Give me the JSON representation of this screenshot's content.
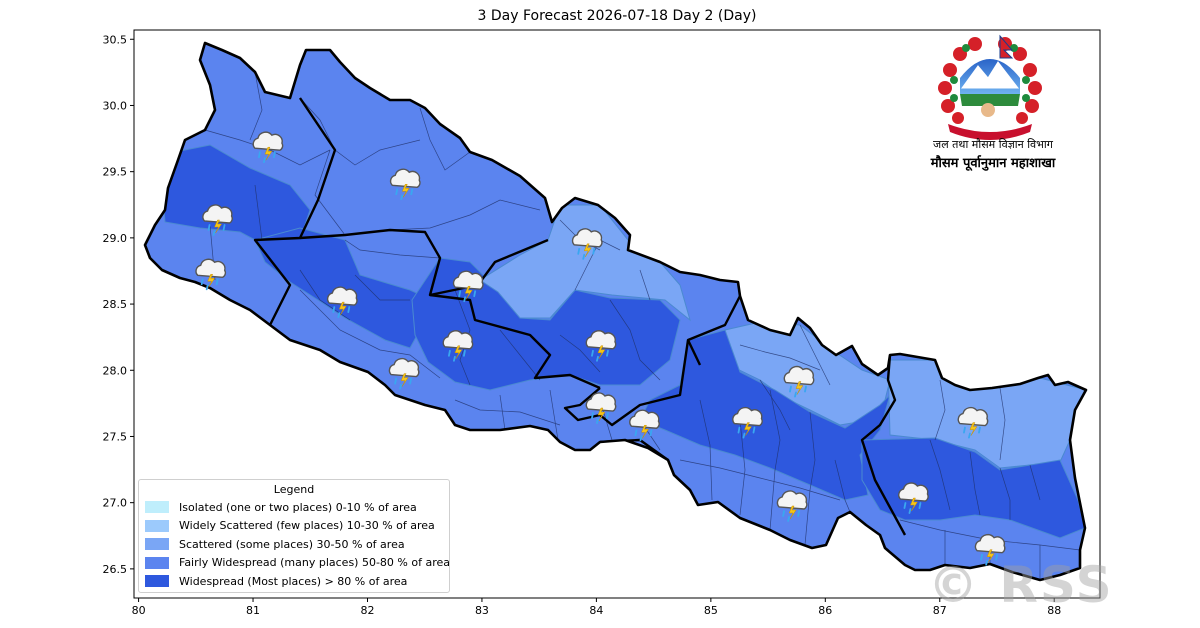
{
  "title": "3 Day Forecast 2026-07-18 Day 2 (Day)",
  "axes": {
    "x_ticks": [
      "80",
      "81",
      "82",
      "83",
      "84",
      "85",
      "86",
      "87",
      "88"
    ],
    "y_ticks": [
      "30.5",
      "30.0",
      "29.5",
      "29.0",
      "28.5",
      "28.0",
      "27.5",
      "27.0",
      "26.5"
    ],
    "xlim": [
      79.96,
      88.4
    ],
    "ylim": [
      26.28,
      30.57
    ]
  },
  "legend": {
    "title": "Legend",
    "items": [
      {
        "label": "Isolated (one or two places)  0-10 % of area",
        "color": "#bfeefc"
      },
      {
        "label": "Widely Scattered (few places)  10-30 % of area",
        "color": "#9ccafc"
      },
      {
        "label": "Scattered (some places)  30-50 % of area",
        "color": "#7aa6f5"
      },
      {
        "label": "Fairly Widespread (many places)  50-80 % of area",
        "color": "#5b84ef"
      },
      {
        "label": "Widespread (Most places) > 80 % of area",
        "color": "#2e58de"
      }
    ]
  },
  "organization": {
    "line1": "जल तथा मौसम विज्ञान विभाग",
    "line2": "मौसम पूर्वानुमान महाशाखा"
  },
  "watermark": "© RSS",
  "regions": [
    {
      "name": "far-west-hills",
      "level": "Fairly Widespread",
      "color": "#5b84ef"
    },
    {
      "name": "far-west-core",
      "level": "Widespread",
      "color": "#2e58de"
    },
    {
      "name": "far-west-plains",
      "level": "Fairly Widespread",
      "color": "#5b84ef"
    },
    {
      "name": "karnali-north",
      "level": "Fairly Widespread",
      "color": "#5b84ef"
    },
    {
      "name": "karnali-south",
      "level": "Widespread",
      "color": "#2e58de"
    },
    {
      "name": "lumbini-plains",
      "level": "Fairly Widespread",
      "color": "#5b84ef"
    },
    {
      "name": "gandaki-north",
      "level": "Scattered",
      "color": "#7aa6f5"
    },
    {
      "name": "gandaki-south",
      "level": "Widespread",
      "color": "#2e58de"
    },
    {
      "name": "bagmati-north",
      "level": "Scattered",
      "color": "#7aa6f5"
    },
    {
      "name": "bagmati-south",
      "level": "Widespread",
      "color": "#2e58de"
    },
    {
      "name": "madhesh",
      "level": "Fairly Widespread",
      "color": "#5b84ef"
    },
    {
      "name": "koshi-north",
      "level": "Scattered",
      "color": "#7aa6f5"
    },
    {
      "name": "koshi-south",
      "level": "Widespread",
      "color": "#2e58de"
    },
    {
      "name": "koshi-plains",
      "level": "Fairly Widespread",
      "color": "#5b84ef"
    }
  ],
  "icons": [
    {
      "name": "thunderstorm-rain-icon",
      "lon": 81.13,
      "lat": 29.7
    },
    {
      "name": "thunderstorm-rain-icon",
      "lon": 82.33,
      "lat": 29.42
    },
    {
      "name": "thunderstorm-rain-icon",
      "lon": 80.69,
      "lat": 29.15
    },
    {
      "name": "thunderstorm-rain-icon",
      "lon": 80.63,
      "lat": 28.74
    },
    {
      "name": "thunderstorm-rain-icon",
      "lon": 81.78,
      "lat": 28.53
    },
    {
      "name": "thunderstorm-rain-icon",
      "lon": 82.88,
      "lat": 28.65
    },
    {
      "name": "thunderstorm-rain-icon",
      "lon": 83.92,
      "lat": 28.97
    },
    {
      "name": "thunderstorm-rain-icon",
      "lon": 82.79,
      "lat": 28.2
    },
    {
      "name": "thunderstorm-rain-icon",
      "lon": 84.04,
      "lat": 28.2
    },
    {
      "name": "thunderstorm-rain-icon",
      "lon": 82.32,
      "lat": 27.99
    },
    {
      "name": "thunderstorm-rain-icon",
      "lon": 84.04,
      "lat": 27.73
    },
    {
      "name": "thunderstorm-rain-icon",
      "lon": 84.42,
      "lat": 27.6
    },
    {
      "name": "thunderstorm-rain-icon",
      "lon": 85.32,
      "lat": 27.62
    },
    {
      "name": "thunderstorm-rain-icon",
      "lon": 85.77,
      "lat": 27.93
    },
    {
      "name": "thunderstorm-rain-icon",
      "lon": 87.29,
      "lat": 27.62
    },
    {
      "name": "thunderstorm-rain-icon",
      "lon": 85.71,
      "lat": 26.99
    },
    {
      "name": "thunderstorm-rain-icon",
      "lon": 86.77,
      "lat": 27.05
    },
    {
      "name": "thunderstorm-rain-icon",
      "lon": 87.44,
      "lat": 26.66
    }
  ]
}
